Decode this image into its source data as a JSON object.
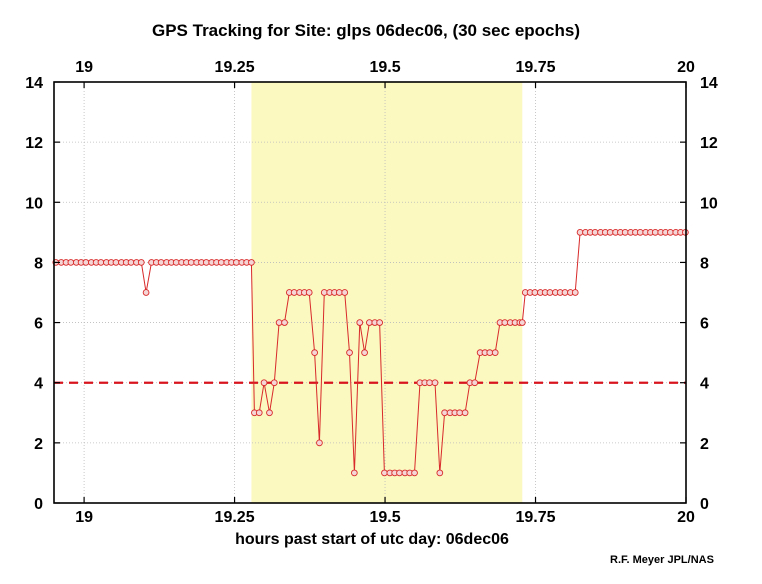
{
  "chart_data": {
    "type": "line",
    "title": "GPS Tracking for Site: glps 06dec06, (30 sec epochs)",
    "xlabel": "hours past start of utc day: 06dec06",
    "ylabel": "",
    "credit": "R.F. Meyer JPL/NAS",
    "xlim": [
      18.95,
      20.0
    ],
    "ylim": [
      0,
      14
    ],
    "xticks": [
      19,
      19.25,
      19.5,
      19.75,
      20
    ],
    "xtick_labels": [
      "19",
      "19.25",
      "19.5",
      "19.75",
      "20"
    ],
    "yticks": [
      0,
      2,
      4,
      6,
      8,
      10,
      12,
      14
    ],
    "ytick_labels": [
      "0",
      "2",
      "4",
      "6",
      "8",
      "10",
      "12",
      "14"
    ],
    "grid": true,
    "highlight_band": {
      "x": [
        19.278,
        19.728
      ],
      "color": "#FBF8C0"
    },
    "threshold": {
      "y": 4,
      "color": "#D8151E",
      "style": "dashed"
    },
    "colors": {
      "series": "#D82A2A",
      "marker_fill": "#F5D5D5"
    },
    "series": [
      {
        "x": [
          18.953,
          18.962,
          18.97,
          18.978,
          18.987,
          18.995,
          19.003,
          19.012,
          19.02,
          19.028,
          19.037,
          19.045,
          19.053,
          19.062,
          19.07,
          19.078,
          19.087,
          19.095,
          19.103,
          19.112,
          19.12,
          19.128,
          19.137,
          19.145,
          19.153,
          19.162,
          19.17,
          19.178,
          19.187,
          19.195,
          19.203,
          19.212,
          19.22,
          19.228,
          19.237,
          19.245,
          19.253,
          19.262,
          19.27,
          19.278,
          19.283,
          19.291,
          19.299,
          19.308,
          19.316,
          19.324,
          19.333,
          19.341,
          19.349,
          19.358,
          19.366,
          19.374,
          19.383,
          19.391,
          19.399,
          19.408,
          19.416,
          19.424,
          19.433,
          19.441,
          19.449,
          19.458,
          19.466,
          19.474,
          19.483,
          19.491,
          19.499,
          19.508,
          19.516,
          19.524,
          19.533,
          19.541,
          19.549,
          19.558,
          19.566,
          19.574,
          19.583,
          19.591,
          19.599,
          19.608,
          19.616,
          19.624,
          19.633,
          19.641,
          19.649,
          19.658,
          19.666,
          19.674,
          19.683,
          19.691,
          19.699,
          19.708,
          19.716,
          19.724,
          19.728,
          19.733,
          19.741,
          19.749,
          19.758,
          19.766,
          19.774,
          19.783,
          19.791,
          19.799,
          19.808,
          19.816,
          19.824,
          19.833,
          19.841,
          19.849,
          19.858,
          19.866,
          19.874,
          19.883,
          19.891,
          19.899,
          19.908,
          19.916,
          19.924,
          19.933,
          19.941,
          19.949,
          19.958,
          19.966,
          19.974,
          19.983,
          19.991,
          19.999
        ],
        "y": [
          8,
          8,
          8,
          8,
          8,
          8,
          8,
          8,
          8,
          8,
          8,
          8,
          8,
          8,
          8,
          8,
          8,
          8,
          7,
          8,
          8,
          8,
          8,
          8,
          8,
          8,
          8,
          8,
          8,
          8,
          8,
          8,
          8,
          8,
          8,
          8,
          8,
          8,
          8,
          8,
          3,
          3,
          4,
          3,
          4,
          6,
          6,
          7,
          7,
          7,
          7,
          7,
          5,
          2,
          7,
          7,
          7,
          7,
          7,
          5,
          1,
          6,
          5,
          6,
          6,
          6,
          1,
          1,
          1,
          1,
          1,
          1,
          1,
          4,
          4,
          4,
          4,
          1,
          3,
          3,
          3,
          3,
          3,
          4,
          4,
          5,
          5,
          5,
          5,
          6,
          6,
          6,
          6,
          6,
          6,
          7,
          7,
          7,
          7,
          7,
          7,
          7,
          7,
          7,
          7,
          7,
          9,
          9,
          9,
          9,
          9,
          9,
          9,
          9,
          9,
          9,
          9,
          9,
          9,
          9,
          9,
          9,
          9,
          9,
          9,
          9,
          9,
          9
        ]
      }
    ]
  }
}
